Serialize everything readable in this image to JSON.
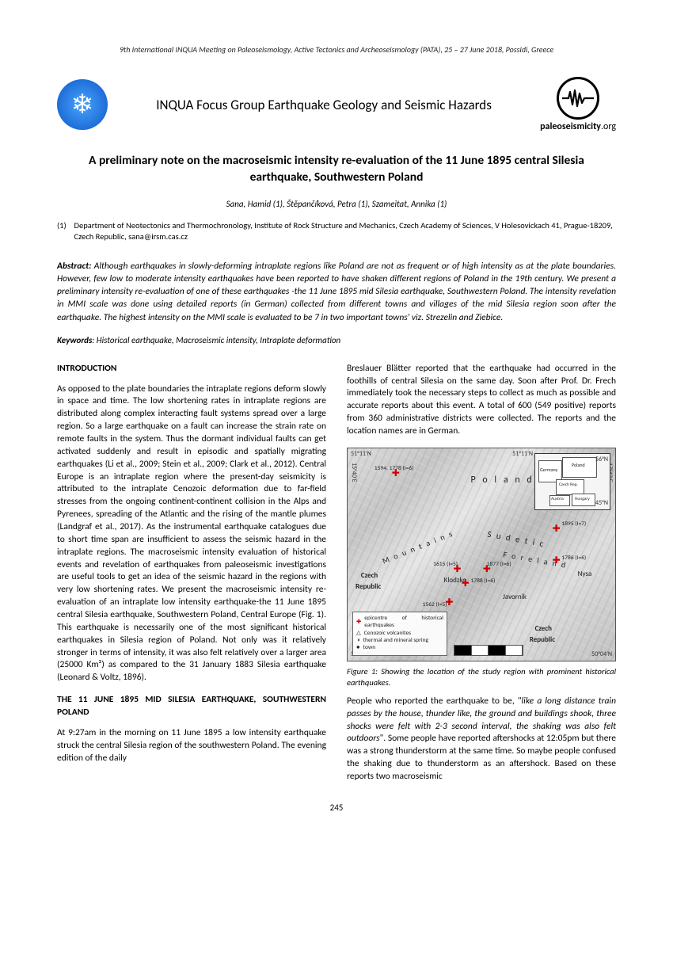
{
  "page": {
    "running_head": "9th International INQUA Meeting on Paleoseismology, Active Tectonics and Archeoseismology (PATA), 25 – 27 June 2018, Possidi, Greece",
    "page_number": "245",
    "background_color": "#ffffff",
    "text_color": "#000000"
  },
  "masthead": {
    "group_title": "INQUA Focus Group Earthquake Geology and Seismic Hazards",
    "logo_snow": {
      "glyph": "❄",
      "bg_gradient": [
        "#4aa3ff",
        "#1e6ed8",
        "#0d4da0"
      ],
      "fg": "#ffffff"
    },
    "logo_paleo": {
      "label_bold": "paleoseismicity",
      "label_suffix": ".org",
      "stroke": "#000000"
    }
  },
  "paper": {
    "title": "A preliminary note on the macroseismic intensity re-evaluation of the 11 June 1895 central Silesia earthquake, Southwestern Poland",
    "authors": "Sana, Hamid (1), Štěpančíková, Petra (1), Szameitat, Annika (1)",
    "affiliation_num": "(1)",
    "affiliation_text": "Department of Neotectonics and Thermochronology, Institute of Rock Structure and Mechanics, Czech Academy of Sciences, V Holesovickach 41, Prague-18209, Czech Republic, sana@irsm.cas.cz"
  },
  "abstract": {
    "lead": "Abstract:",
    "text": " Although earthquakes in slowly-deforming intraplate regions like Poland are not as frequent or of high intensity as at the plate boundaries. However, few low to moderate intensity earthquakes have been reported to have shaken different regions of Poland in the 19th century. We present a preliminary intensity re-evaluation of one of these earthquakes -the 11 June 1895 mid Silesia earthquake, Southwestern Poland.  The intensity revelation in MMI scale was done using detailed reports (in German) collected from different towns and villages of the mid Silesia region soon after the earthquake. The highest intensity on the MMI scale is evaluated to be 7 in two important towns' viz. Strezelin and Ziebice."
  },
  "keywords": {
    "lead": "Keywords",
    "text": ": Historical earthquake, Macroseismic intensity, Intraplate deformation"
  },
  "sections": {
    "intro_head": "INTRODUCTION",
    "intro_body": "As opposed to the plate boundaries the intraplate regions deform slowly in space and time. The low shortening rates in intraplate regions are distributed along complex interacting fault systems spread over a large region. So a large earthquake on a fault can increase the strain rate on remote faults in the system. Thus the dormant individual faults can get activated suddenly and result in episodic and spatially migrating earthquakes (Li et al., 2009; Stein et al., 2009; Clark et al., 2012). Central Europe is an intraplate region where the present-day seismicity is attributed to the intraplate Cenozoic deformation due to far-field stresses from the ongoing continent-continent collision in the Alps and Pyrenees, spreading of the Atlantic and the rising of the mantle plumes (Landgraf et al., 2017). As the instrumental earthquake catalogues due to short time span are insufficient to assess the seismic hazard in the intraplate regions. The macroseismic intensity evaluation of historical events and revelation of earthquakes from paleoseismic investigations are useful tools to get an idea of the seismic hazard in the regions with very low shortening rates. We present the macroseismic intensity re-evaluation of an intraplate low intensity earthquake-the 11 June 1895 central Silesia earthquake, Southwestern Poland, Central Europe (Fig. 1). This earthquake is necessarily one of the most significant historical earthquakes in Silesia region of Poland. Not only was it relatively stronger in terms of intensity, it was also felt relatively over a larger area (25000 Km²) as compared to the 31 January 1883 Silesia earthquake (Leonard & Voltz, 1896).",
    "event_head": "THE 11 JUNE 1895 MID SILESIA EARTHQUAKE, SOUTHWESTERN POLAND",
    "event_p1": "At 9:27am in the morning on 11 June 1895 a low intensity earthquake struck the central Silesia region of the southwestern Poland. The evening edition of the daily",
    "event_p2": "Breslauer Blätter reported that the earthquake had occurred in the foothills of central Silesia on the same day. Soon after Prof. Dr. Frech immediately took the necessary steps to collect as much as possible and accurate reports about this event. A total of 600 (549 positive) reports from 360 administrative districts were collected. The reports and the location names are in German.",
    "event_p3_pre": "People who reported the earthquake to be, \"",
    "event_p3_quote": "like a long distance train passes by the house, thunder like, the ground and buildings shook, three shocks were felt with 2-3 second interval, the shaking was also felt outdoors",
    "event_p3_post": "\". Some people have reported aftershocks at 12:05pm but there was a strong thunderstorm at the same time. So maybe people confused the shaking due to thunderstorm as an aftershock. Based on these reports two macroseismic"
  },
  "figure1": {
    "caption": "Figure 1: Showing the location of the study region with prominent historical earthquakes.",
    "axis": {
      "top_left": "51°11'N",
      "top_right": "51°11'N",
      "bottom_left": "50°04'N",
      "bottom_right": "50°04'N",
      "left": "15°40'E",
      "right": "17°42'E"
    },
    "inset": {
      "countries": [
        "Germany",
        "Poland",
        "Czech Rep.",
        "Austria",
        "Hungary"
      ],
      "lat_top": "56°N",
      "lat_bot": "45°N"
    },
    "labels": {
      "poland": "P o l a n d",
      "sudetic": "S u d e t i c",
      "mountains": "M o u n t a i n s",
      "foreland": "F o r e l a n d",
      "czech1": "Czech",
      "republic1": "Republic",
      "czech2": "Czech",
      "republic2": "Republic",
      "klodzko": "Klodzko",
      "nysa": "Nysa",
      "javornik": "Javornik",
      "eq1": "1594, 1778 (I=6)",
      "eq2": "1895 (I=7)",
      "eq3": "1615 (I=5)",
      "eq4": "1877 (I=6)",
      "eq5": "1786 (I=6)",
      "eq6": "1788 (I=6)",
      "eq7": "1562 (I=5)"
    },
    "legend": {
      "l1": "epicentre of historical earthquakes",
      "l2": "Cenozoic volcanites",
      "l3": "thermal and mineral spring",
      "l4": "town"
    },
    "scale": {
      "units": "km",
      "ticks": [
        "0",
        "10",
        "20"
      ]
    },
    "marker_color": "#cc0000",
    "markers": [
      {
        "x": 18,
        "y": 12
      },
      {
        "x": 78,
        "y": 38
      },
      {
        "x": 41,
        "y": 57
      },
      {
        "x": 52,
        "y": 57
      },
      {
        "x": 78,
        "y": 53
      },
      {
        "x": 44,
        "y": 64
      },
      {
        "x": 38,
        "y": 73
      }
    ]
  }
}
